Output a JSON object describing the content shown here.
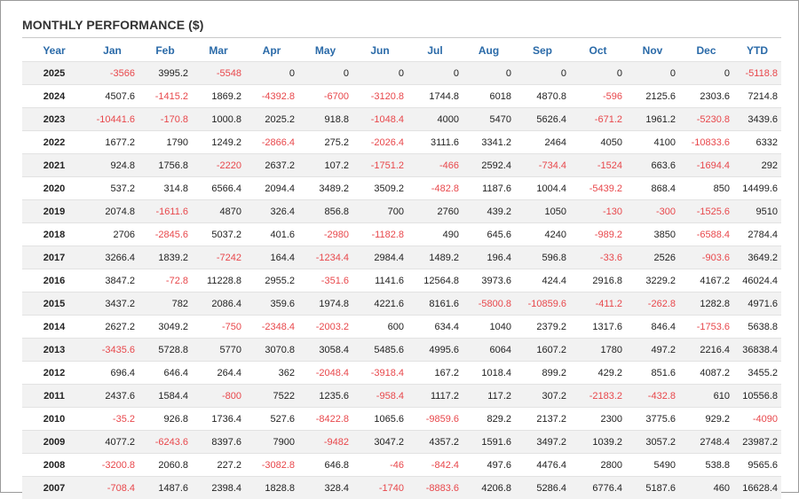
{
  "title": "MONTHLY PERFORMANCE ($)",
  "colors": {
    "header": "#2a6aa8",
    "negative": "#e8474b",
    "positive": "#222222",
    "stripe": "#f2f2f2"
  },
  "columns": [
    "Year",
    "Jan",
    "Feb",
    "Mar",
    "Apr",
    "May",
    "Jun",
    "Jul",
    "Aug",
    "Sep",
    "Oct",
    "Nov",
    "Dec",
    "YTD"
  ],
  "rows": [
    [
      "2025",
      "-3566",
      "3995.2",
      "-5548",
      "0",
      "0",
      "0",
      "0",
      "0",
      "0",
      "0",
      "0",
      "0",
      "-5118.8"
    ],
    [
      "2024",
      "4507.6",
      "-1415.2",
      "1869.2",
      "-4392.8",
      "-6700",
      "-3120.8",
      "1744.8",
      "6018",
      "4870.8",
      "-596",
      "2125.6",
      "2303.6",
      "7214.8"
    ],
    [
      "2023",
      "-10441.6",
      "-170.8",
      "1000.8",
      "2025.2",
      "918.8",
      "-1048.4",
      "4000",
      "5470",
      "5626.4",
      "-671.2",
      "1961.2",
      "-5230.8",
      "3439.6"
    ],
    [
      "2022",
      "1677.2",
      "1790",
      "1249.2",
      "-2866.4",
      "275.2",
      "-2026.4",
      "3111.6",
      "3341.2",
      "2464",
      "4050",
      "4100",
      "-10833.6",
      "6332"
    ],
    [
      "2021",
      "924.8",
      "1756.8",
      "-2220",
      "2637.2",
      "107.2",
      "-1751.2",
      "-466",
      "2592.4",
      "-734.4",
      "-1524",
      "663.6",
      "-1694.4",
      "292"
    ],
    [
      "2020",
      "537.2",
      "314.8",
      "6566.4",
      "2094.4",
      "3489.2",
      "3509.2",
      "-482.8",
      "1187.6",
      "1004.4",
      "-5439.2",
      "868.4",
      "850",
      "14499.6"
    ],
    [
      "2019",
      "2074.8",
      "-1611.6",
      "4870",
      "326.4",
      "856.8",
      "700",
      "2760",
      "439.2",
      "1050",
      "-130",
      "-300",
      "-1525.6",
      "9510"
    ],
    [
      "2018",
      "2706",
      "-2845.6",
      "5037.2",
      "401.6",
      "-2980",
      "-1182.8",
      "490",
      "645.6",
      "4240",
      "-989.2",
      "3850",
      "-6588.4",
      "2784.4"
    ],
    [
      "2017",
      "3266.4",
      "1839.2",
      "-7242",
      "164.4",
      "-1234.4",
      "2984.4",
      "1489.2",
      "196.4",
      "596.8",
      "-33.6",
      "2526",
      "-903.6",
      "3649.2"
    ],
    [
      "2016",
      "3847.2",
      "-72.8",
      "11228.8",
      "2955.2",
      "-351.6",
      "1141.6",
      "12564.8",
      "3973.6",
      "424.4",
      "2916.8",
      "3229.2",
      "4167.2",
      "46024.4"
    ],
    [
      "2015",
      "3437.2",
      "782",
      "2086.4",
      "359.6",
      "1974.8",
      "4221.6",
      "8161.6",
      "-5800.8",
      "-10859.6",
      "-411.2",
      "-262.8",
      "1282.8",
      "4971.6"
    ],
    [
      "2014",
      "2627.2",
      "3049.2",
      "-750",
      "-2348.4",
      "-2003.2",
      "600",
      "634.4",
      "1040",
      "2379.2",
      "1317.6",
      "846.4",
      "-1753.6",
      "5638.8"
    ],
    [
      "2013",
      "-3435.6",
      "5728.8",
      "5770",
      "3070.8",
      "3058.4",
      "5485.6",
      "4995.6",
      "6064",
      "1607.2",
      "1780",
      "497.2",
      "2216.4",
      "36838.4"
    ],
    [
      "2012",
      "696.4",
      "646.4",
      "264.4",
      "362",
      "-2048.4",
      "-3918.4",
      "167.2",
      "1018.4",
      "899.2",
      "429.2",
      "851.6",
      "4087.2",
      "3455.2"
    ],
    [
      "2011",
      "2437.6",
      "1584.4",
      "-800",
      "7522",
      "1235.6",
      "-958.4",
      "1117.2",
      "117.2",
      "307.2",
      "-2183.2",
      "-432.8",
      "610",
      "10556.8"
    ],
    [
      "2010",
      "-35.2",
      "926.8",
      "1736.4",
      "527.6",
      "-8422.8",
      "1065.6",
      "-9859.6",
      "829.2",
      "2137.2",
      "2300",
      "3775.6",
      "929.2",
      "-4090"
    ],
    [
      "2009",
      "4077.2",
      "-6243.6",
      "8397.6",
      "7900",
      "-9482",
      "3047.2",
      "4357.2",
      "1591.6",
      "3497.2",
      "1039.2",
      "3057.2",
      "2748.4",
      "23987.2"
    ],
    [
      "2008",
      "-3200.8",
      "2060.8",
      "227.2",
      "-3082.8",
      "646.8",
      "-46",
      "-842.4",
      "497.6",
      "4476.4",
      "2800",
      "5490",
      "538.8",
      "9565.6"
    ],
    [
      "2007",
      "-708.4",
      "1487.6",
      "2398.4",
      "1828.8",
      "328.4",
      "-1740",
      "-8883.6",
      "4206.8",
      "5286.4",
      "6776.4",
      "5187.6",
      "460",
      "16628.4"
    ]
  ]
}
